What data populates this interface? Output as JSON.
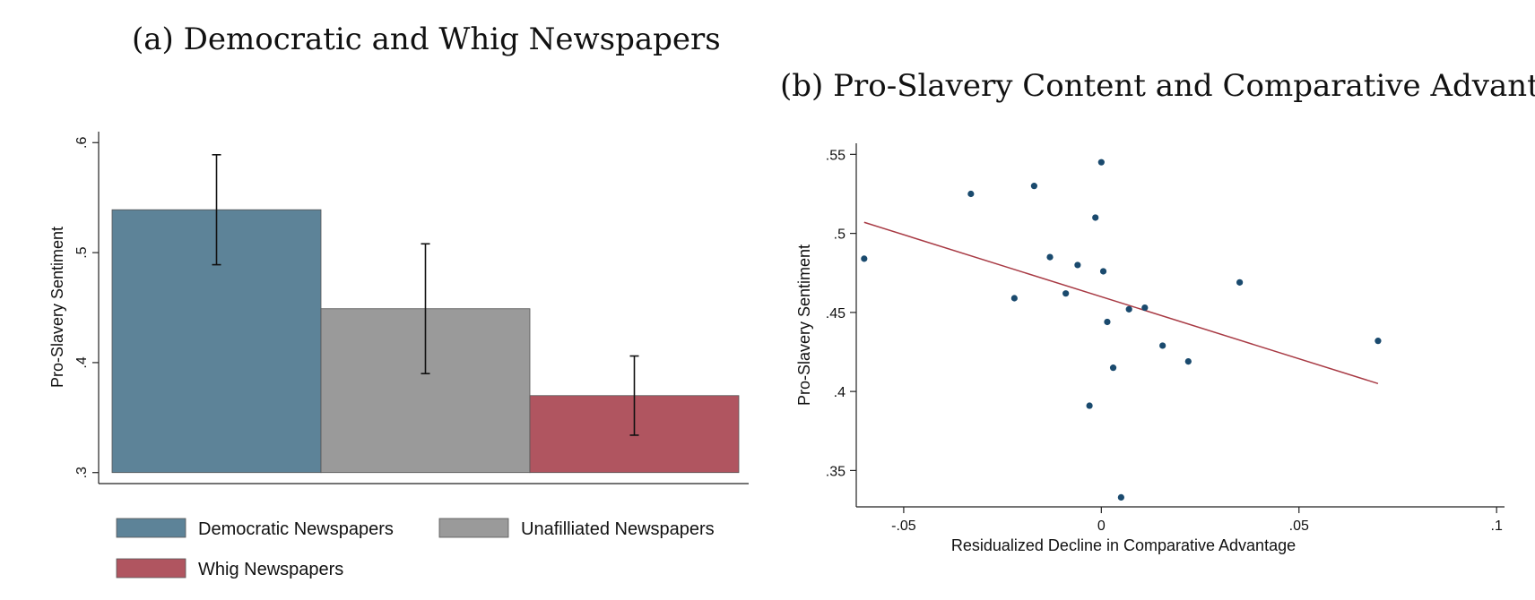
{
  "chart_data": [
    {
      "type": "bar",
      "title": "(a) Democratic and Whig Newspapers",
      "ylabel": "Pro-Slavery Sentiment",
      "xlabel": "",
      "ylim": [
        0.29,
        0.61
      ],
      "yticks": [
        ".3",
        ".4",
        ".5",
        ".6"
      ],
      "ytick_values": [
        0.3,
        0.4,
        0.5,
        0.6
      ],
      "categories": [
        "Democratic Newspapers",
        "Unafilliated Newspapers",
        "Whig Newspapers"
      ],
      "values": [
        0.539,
        0.449,
        0.37
      ],
      "ci_low": [
        0.489,
        0.39,
        0.334
      ],
      "ci_high": [
        0.589,
        0.508,
        0.406
      ],
      "colors": [
        "#5d8398",
        "#9a9a9a",
        "#b05560"
      ],
      "legend_placement": "bottom",
      "grid": false
    },
    {
      "type": "scatter",
      "title": "(b) Pro-Slavery Content and Comparative Advantage",
      "xlabel": "Residualized Decline in Comparative Advantage",
      "ylabel": "Pro-Slavery Sentiment",
      "xlim": [
        -0.062,
        0.102
      ],
      "ylim": [
        0.327,
        0.557
      ],
      "xticks": [
        "-.05",
        "0",
        ".05",
        ".1"
      ],
      "xtick_values": [
        -0.05,
        0,
        0.05,
        0.1
      ],
      "yticks": [
        ".35",
        ".4",
        ".45",
        ".5",
        ".55"
      ],
      "ytick_values": [
        0.35,
        0.4,
        0.45,
        0.5,
        0.55
      ],
      "points": [
        {
          "x": -0.06,
          "y": 0.484
        },
        {
          "x": -0.033,
          "y": 0.525
        },
        {
          "x": -0.022,
          "y": 0.459
        },
        {
          "x": -0.017,
          "y": 0.53
        },
        {
          "x": -0.013,
          "y": 0.485
        },
        {
          "x": -0.009,
          "y": 0.462
        },
        {
          "x": -0.006,
          "y": 0.48
        },
        {
          "x": -0.003,
          "y": 0.391
        },
        {
          "x": -0.0015,
          "y": 0.51
        },
        {
          "x": 0.0,
          "y": 0.545
        },
        {
          "x": 0.0005,
          "y": 0.476
        },
        {
          "x": 0.0015,
          "y": 0.444
        },
        {
          "x": 0.003,
          "y": 0.415
        },
        {
          "x": 0.005,
          "y": 0.333
        },
        {
          "x": 0.007,
          "y": 0.452
        },
        {
          "x": 0.011,
          "y": 0.453
        },
        {
          "x": 0.0155,
          "y": 0.429
        },
        {
          "x": 0.022,
          "y": 0.419
        },
        {
          "x": 0.035,
          "y": 0.469
        },
        {
          "x": 0.07,
          "y": 0.432
        }
      ],
      "fit_line": {
        "x": [
          -0.06,
          0.07
        ],
        "y": [
          0.507,
          0.405
        ]
      },
      "point_color": "#1a4a6e",
      "line_color": "#a83a44",
      "grid": false
    }
  ]
}
